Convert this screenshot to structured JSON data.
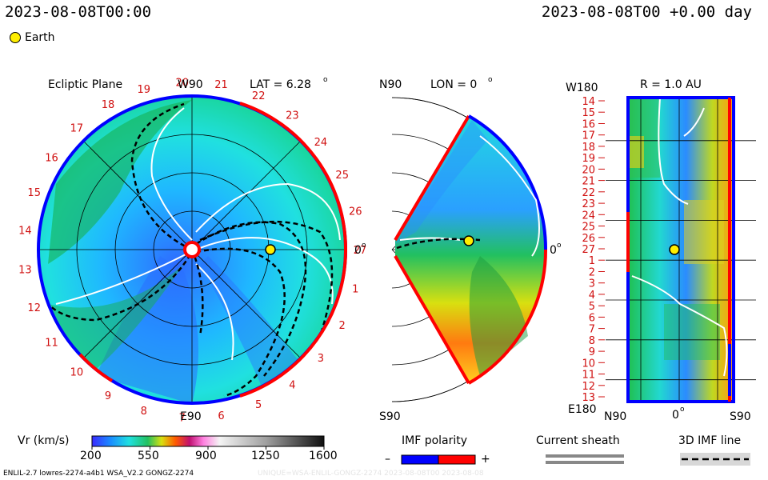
{
  "header": {
    "timestamp_left": "2023-08-08T00:00",
    "timestamp_right": "2023-08-08T00 +0.00 day",
    "legend_earth": "Earth"
  },
  "colors": {
    "positive_polarity": "#ff0000",
    "negative_polarity": "#0000ff",
    "earth": "#ffee00",
    "speed_map_low": "#1a3cff",
    "speed_map_high": "#ff2a00"
  },
  "chart_data": [
    {
      "type": "heatmap",
      "panel": "ecliptic",
      "title": "Ecliptic Plane",
      "lat_label": "LAT = 6.28",
      "lat_unit": "o",
      "axis_top": "W90",
      "axis_bottom": "E90",
      "axis_right": "0",
      "axis_right_unit": "o",
      "carrington_labels": [
        "1",
        "2",
        "3",
        "4",
        "5",
        "6",
        "7",
        "8",
        "9",
        "10",
        "11",
        "12",
        "13",
        "14",
        "15",
        "16",
        "17",
        "18",
        "19",
        "20",
        "21",
        "22",
        "23",
        "24",
        "25",
        "26",
        "27"
      ],
      "earth": {
        "r_au": 1.0,
        "lon_deg": 0
      }
    },
    {
      "type": "heatmap",
      "panel": "meridional",
      "top_label": "N90",
      "bottom_label": "S90",
      "lon_label": "LON = 0",
      "lon_unit": "o",
      "axis_right": "0",
      "axis_right_unit": "o",
      "earth": {
        "r_au": 1.0,
        "lat_deg": 6.28
      }
    },
    {
      "type": "heatmap",
      "panel": "radial",
      "title": "R = 1.0 AU",
      "y_top": "W180",
      "y_bottom": "E180",
      "x_labels": [
        "N90",
        "0",
        "S90"
      ],
      "x_mid_unit": "o",
      "rows": [
        "14",
        "15",
        "16",
        "17",
        "18",
        "19",
        "20",
        "21",
        "22",
        "23",
        "24",
        "25",
        "26",
        "27",
        "1",
        "2",
        "3",
        "4",
        "5",
        "6",
        "7",
        "8",
        "9",
        "10",
        "11",
        "12",
        "13"
      ]
    }
  ],
  "colorbar": {
    "label": "Vr (km/s)",
    "ticks": [
      "200",
      "550",
      "900",
      "1250",
      "1600"
    ],
    "range": [
      200,
      1600
    ]
  },
  "imf": {
    "title": "IMF polarity",
    "minus": "–",
    "plus": "+"
  },
  "sheath": {
    "title": "Current sheath"
  },
  "imfline": {
    "title": "3D IMF line"
  },
  "footer": {
    "left": "ENLIL-2.7 lowres-2274-a4b1 WSA_V2.2 GONGZ-2274",
    "right": "UNIQUE=WSA-ENLIL-GONGZ-2274 2023-08-08T00 2023-08-08"
  }
}
